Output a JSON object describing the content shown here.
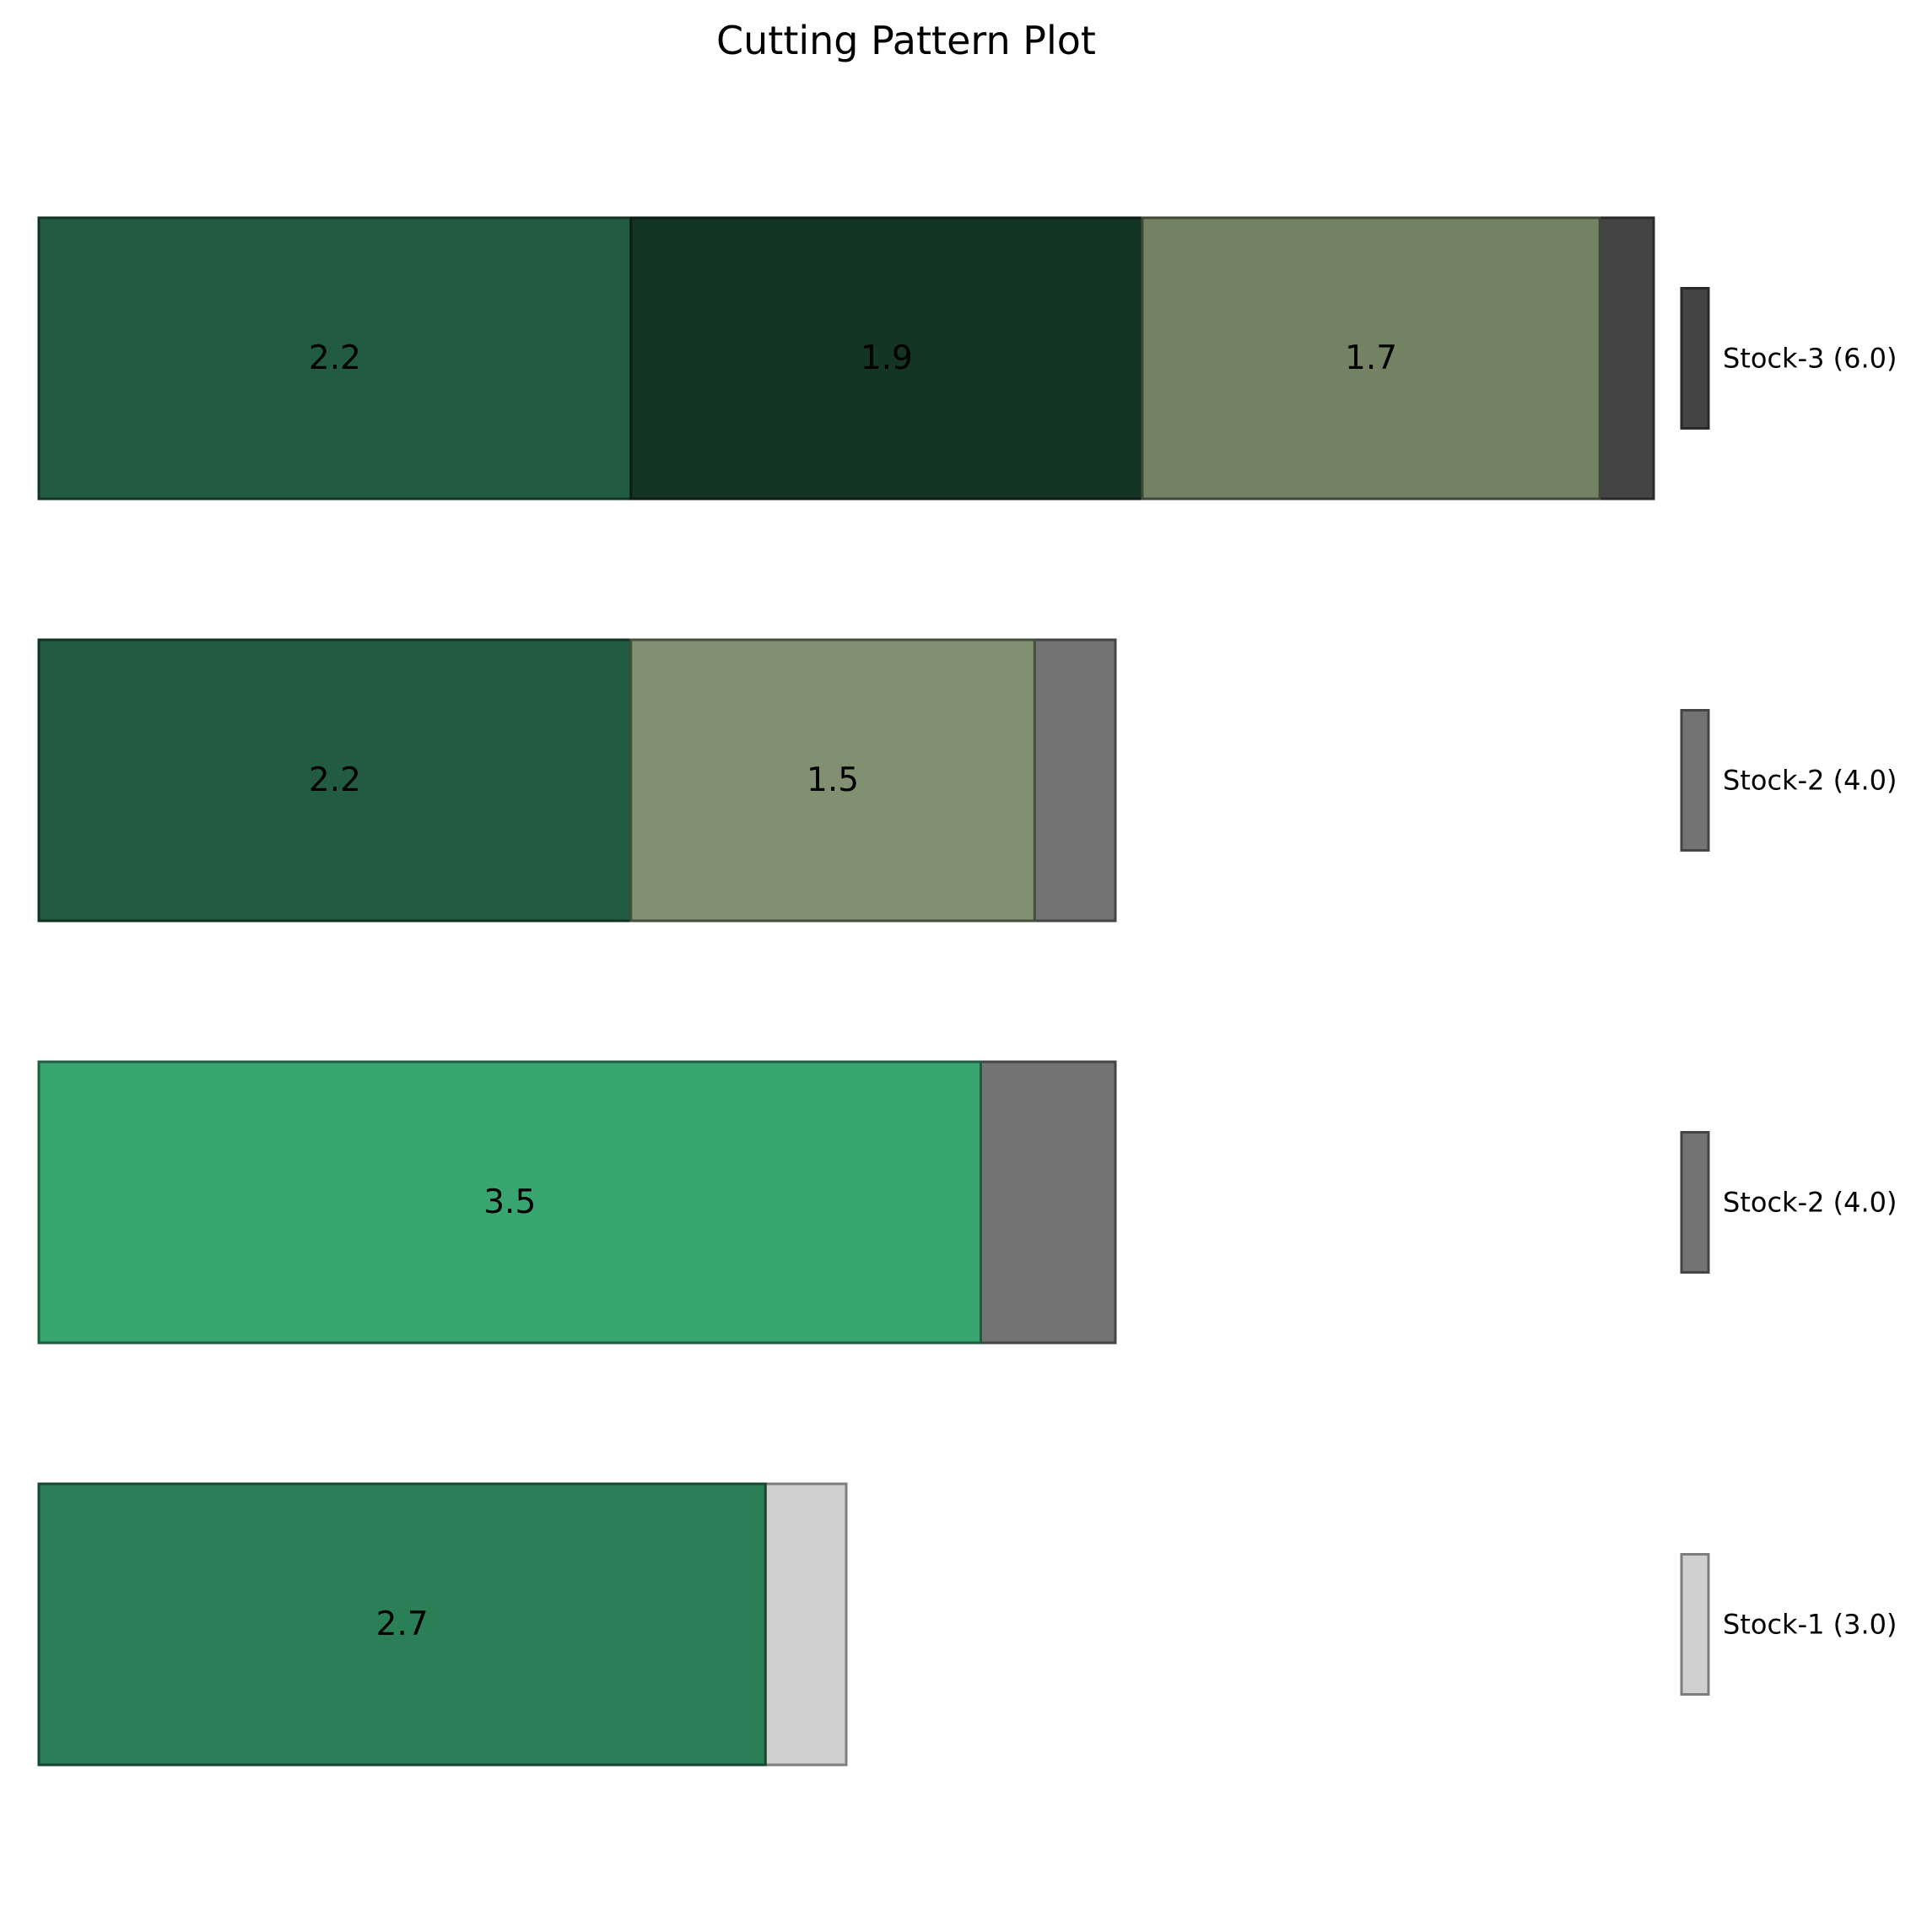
{
  "chart_data": {
    "type": "bar",
    "orientation": "horizontal-stacked",
    "title": "Cutting Pattern Plot",
    "xlabel": "",
    "ylabel": "",
    "xlim": [
      0,
      6.2
    ],
    "grid": false,
    "axes_visible": false,
    "legend_placement": "right",
    "bars": [
      {
        "stock": "Stock-3 (6.0)",
        "stock_length": 6.0,
        "stock_color": "#444444",
        "pieces": [
          {
            "value": 2.2,
            "label": "2.2",
            "color": "#215b41"
          },
          {
            "value": 1.9,
            "label": "1.9",
            "color": "#143424"
          },
          {
            "value": 1.7,
            "label": "1.7",
            "color": "#748264"
          }
        ]
      },
      {
        "stock": "Stock-2 (4.0)",
        "stock_length": 4.0,
        "stock_color": "#737373",
        "pieces": [
          {
            "value": 2.2,
            "label": "2.2",
            "color": "#215b41"
          },
          {
            "value": 1.5,
            "label": "1.5",
            "color": "#809070"
          }
        ]
      },
      {
        "stock": "Stock-2 (4.0)",
        "stock_length": 4.0,
        "stock_color": "#737373",
        "pieces": [
          {
            "value": 3.5,
            "label": "3.5",
            "color": "#39a672"
          }
        ]
      },
      {
        "stock": "Stock-1 (3.0)",
        "stock_length": 3.0,
        "stock_color": "#d0d0d0",
        "pieces": [
          {
            "value": 2.7,
            "label": "2.7",
            "color": "#2b7f57"
          }
        ]
      }
    ]
  }
}
